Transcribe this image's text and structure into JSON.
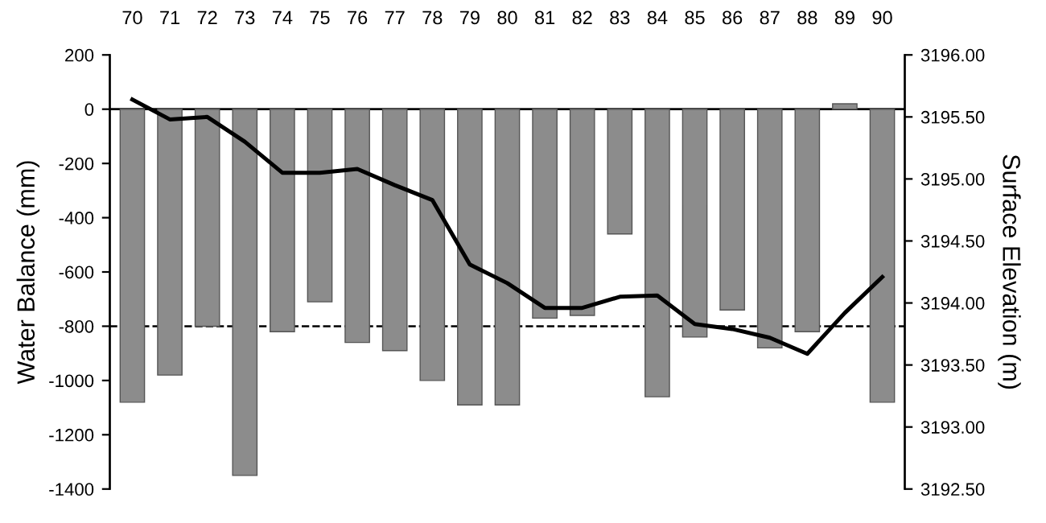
{
  "chart_data": {
    "type": "bar",
    "ylabel": "Water Balance (mm)",
    "y2label": "Surface Elevation (m)",
    "categories": [
      "70",
      "71",
      "72",
      "73",
      "74",
      "75",
      "76",
      "77",
      "78",
      "79",
      "80",
      "81",
      "82",
      "83",
      "84",
      "85",
      "86",
      "87",
      "88",
      "89",
      "90"
    ],
    "series": [
      {
        "color": "#8c8c8c",
        "values": [
          -1080,
          -980,
          -800,
          -1350,
          -820,
          -710,
          -860,
          -890,
          -1000,
          -1090,
          -1090,
          -770,
          -760,
          -460,
          -1060,
          -840,
          -740,
          -880,
          -820,
          20,
          -1080
        ]
      },
      {
        "type": "line",
        "axis": "y2",
        "color": "#000000",
        "values": [
          3195.64,
          3195.48,
          3195.5,
          3195.3,
          3195.05,
          3195.05,
          3195.08,
          3194.95,
          3194.83,
          3194.31,
          3194.16,
          3193.96,
          3193.96,
          3194.05,
          3194.06,
          3193.83,
          3193.79,
          3193.72,
          3193.59,
          3193.92,
          3194.21
        ]
      }
    ],
    "ylim": [
      -1400,
      200
    ],
    "yticks": [
      -1400,
      -1200,
      -1000,
      -800,
      -600,
      -400,
      -200,
      0,
      200
    ],
    "y2lim": [
      3192.5,
      3196
    ],
    "y2ticks": [
      {
        "value": 3192.5,
        "label": "3192.50"
      },
      {
        "value": 3193,
        "label": "3193.00"
      },
      {
        "value": 3193.5,
        "label": "3193.50"
      },
      {
        "value": 3194,
        "label": "3194.00"
      },
      {
        "value": 3194.5,
        "label": "3194.50"
      },
      {
        "value": 3195,
        "label": "3195.00"
      },
      {
        "value": 3195.5,
        "label": "3195.50"
      },
      {
        "value": 3196,
        "label": "3196.00"
      }
    ],
    "ref_lines": [
      {
        "axis": "y",
        "value": -800,
        "color": "#000000",
        "line_style": "dashed"
      }
    ],
    "grid": false
  }
}
